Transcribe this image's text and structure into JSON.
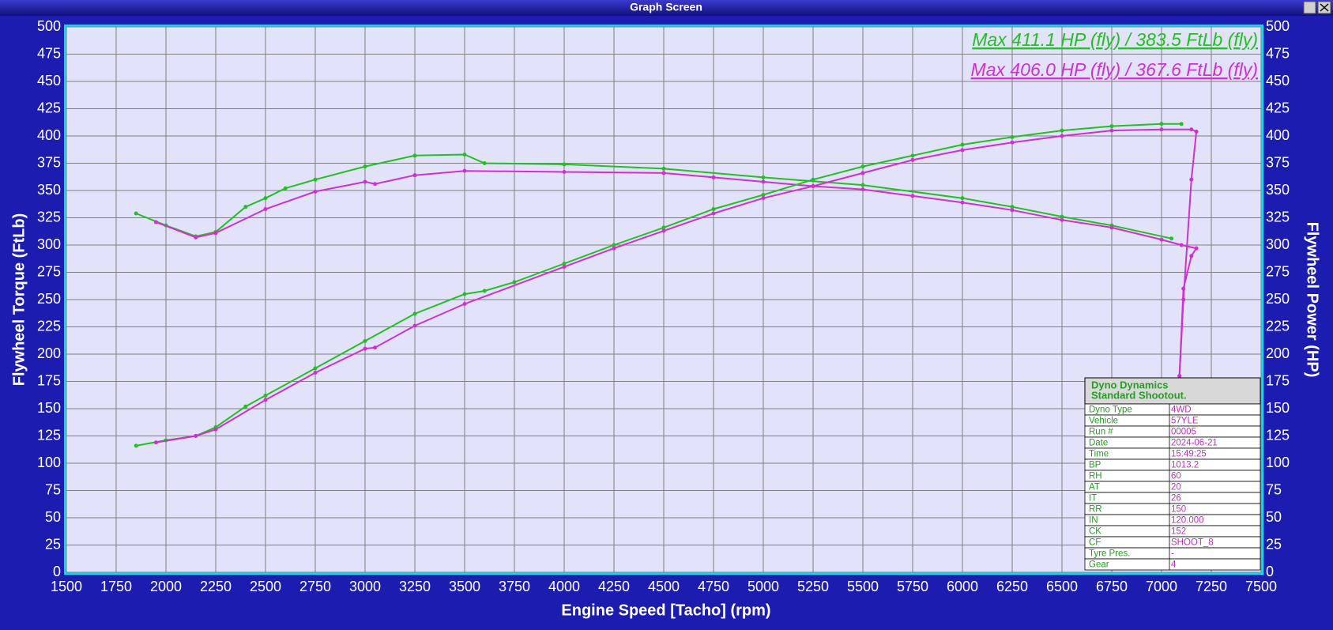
{
  "window_title": "Graph Screen",
  "chart_data": {
    "type": "line",
    "xlabel": "Engine Speed [Tacho] (rpm)",
    "ylabel": "Flywheel Torque (FtLb)",
    "y2label": "Flywheel Power (HP)",
    "xlim": [
      1500,
      7500
    ],
    "xticks": [
      1500,
      1750,
      2000,
      2250,
      2500,
      2750,
      3000,
      3250,
      3500,
      3750,
      4000,
      4250,
      4500,
      4750,
      5000,
      5250,
      5500,
      5750,
      6000,
      6250,
      6500,
      6750,
      7000,
      7250,
      7500
    ],
    "ylim": [
      0,
      500
    ],
    "yticks": [
      0,
      25,
      50,
      75,
      100,
      125,
      150,
      175,
      200,
      225,
      250,
      275,
      300,
      325,
      350,
      375,
      400,
      425,
      450,
      475,
      500
    ],
    "y2lim": [
      0,
      500
    ],
    "y2ticks": [
      0,
      25,
      50,
      75,
      100,
      125,
      150,
      175,
      200,
      225,
      250,
      275,
      300,
      325,
      350,
      375,
      400,
      425,
      450,
      475,
      500
    ],
    "grid": true,
    "annotations": [
      {
        "text": "Max 411.1 HP (fly) / 383.5 FtLb (fly)",
        "color": "#22c022"
      },
      {
        "text": "Max 406.0 HP (fly) / 367.6 FtLb (fly)",
        "color": "#d030d0"
      }
    ],
    "series": [
      {
        "color": "#22c022",
        "x": [
          1850,
          2000,
          2150,
          2250,
          2400,
          2500,
          2600,
          2750,
          3000,
          3250,
          3500,
          3600,
          4000,
          4500,
          5000,
          5500,
          6000,
          6250,
          6500,
          6750,
          7050
        ],
        "values": [
          329,
          318,
          308,
          312,
          335,
          343,
          352,
          360,
          372,
          382,
          383,
          375,
          374,
          370,
          362,
          355,
          343,
          335,
          326,
          318,
          306
        ]
      },
      {
        "color": "#d030d0",
        "x": [
          1950,
          2150,
          2250,
          2500,
          2750,
          3000,
          3050,
          3250,
          3500,
          4000,
          4500,
          4750,
          5000,
          5250,
          5500,
          5750,
          6000,
          6250,
          6500,
          6750,
          7000,
          7100,
          7175,
          7150,
          7110,
          7090
        ],
        "values": [
          321,
          307,
          311,
          333,
          349,
          358,
          356,
          364,
          368,
          367,
          366,
          362,
          358,
          354,
          351,
          345,
          339,
          332,
          323,
          316,
          305,
          300,
          297,
          290,
          260,
          180
        ]
      },
      {
        "color": "#22c022",
        "axis": "y2",
        "x": [
          1850,
          2000,
          2150,
          2250,
          2400,
          2500,
          2750,
          3000,
          3250,
          3500,
          3600,
          3750,
          4000,
          4250,
          4500,
          4750,
          5000,
          5250,
          5500,
          5750,
          6000,
          6250,
          6500,
          6750,
          7000,
          7100
        ],
        "values": [
          116,
          121,
          125,
          133,
          152,
          162,
          187,
          212,
          237,
          255,
          258,
          266,
          283,
          300,
          316,
          333,
          346,
          360,
          372,
          382,
          392,
          399,
          405,
          409,
          411.1,
          411
        ]
      },
      {
        "color": "#d030d0",
        "axis": "y2",
        "x": [
          1950,
          2150,
          2250,
          2500,
          2750,
          3000,
          3050,
          3250,
          3500,
          4000,
          4250,
          4500,
          4750,
          5000,
          5250,
          5500,
          5750,
          6000,
          6250,
          6500,
          6750,
          7000,
          7150,
          7175,
          7150,
          7110,
          7090
        ],
        "values": [
          119,
          125,
          131,
          158,
          183,
          205,
          206,
          226,
          246,
          280,
          297,
          313,
          329,
          343,
          354,
          366,
          378,
          387,
          394,
          400,
          405,
          406,
          406,
          404,
          360,
          250,
          180
        ]
      }
    ]
  },
  "info_table": {
    "title": [
      "Dyno Dynamics",
      "Standard Shootout."
    ],
    "rows": [
      [
        "Dyno Type",
        "4WD"
      ],
      [
        "Vehicle",
        "57YLE"
      ],
      [
        "Run #",
        "00005"
      ],
      [
        "Date",
        "2024-06-21"
      ],
      [
        "Time",
        "15:49:25"
      ],
      [
        "BP",
        "1013.2"
      ],
      [
        "RH",
        "60"
      ],
      [
        "AT",
        "20"
      ],
      [
        "IT",
        "26"
      ],
      [
        "RR",
        "150"
      ],
      [
        "IN",
        "120.000"
      ],
      [
        "CK",
        "152"
      ],
      [
        "CF",
        "SHOOT_8"
      ],
      [
        "Tyre Pres.",
        "-"
      ],
      [
        "Gear",
        "4"
      ]
    ]
  }
}
